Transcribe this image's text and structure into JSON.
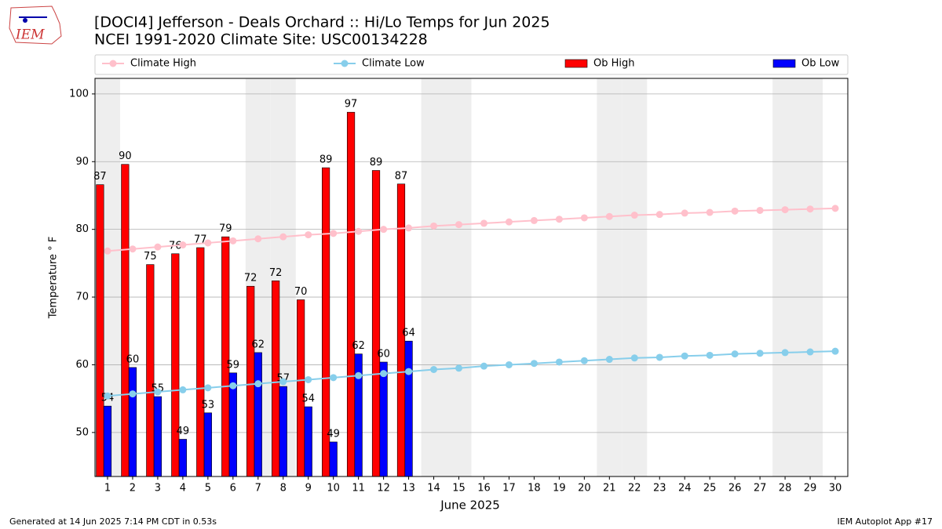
{
  "logo_text": "IEM",
  "chart_data": {
    "type": "bar_line",
    "title": "[DOCI4] Jefferson - Deals Orchard :: Hi/Lo Temps for Jun 2025",
    "subtitle": "NCEI 1991-2020 Climate Site: USC00134228",
    "x_label": "June 2025",
    "y_label": "Temperature ° F",
    "footer_left": "Generated at 14 Jun 2025 7:14 PM CDT in 0.53s",
    "footer_right": "IEM Autoplot App #17",
    "x": [
      1,
      2,
      3,
      4,
      5,
      6,
      7,
      8,
      9,
      10,
      11,
      12,
      13,
      14,
      15,
      16,
      17,
      18,
      19,
      20,
      21,
      22,
      23,
      24,
      25,
      26,
      27,
      28,
      29,
      30
    ],
    "xlim": [
      0.5,
      30.5
    ],
    "xticks": [
      1,
      2,
      3,
      4,
      5,
      6,
      7,
      8,
      9,
      10,
      11,
      12,
      13,
      14,
      15,
      16,
      17,
      18,
      19,
      20,
      21,
      22,
      23,
      24,
      25,
      26,
      27,
      28,
      29,
      30
    ],
    "ylim": [
      43.5,
      102.3
    ],
    "yticks": [
      50,
      60,
      70,
      80,
      90,
      100
    ],
    "grid": true,
    "shaded_days": [
      1,
      7,
      8,
      14,
      15,
      21,
      22,
      28,
      29
    ],
    "shade_color": "#eeeeee",
    "series": [
      {
        "name": "Climate High",
        "kind": "line",
        "color": "#ffc0cb",
        "values": [
          76.8,
          77.1,
          77.4,
          77.7,
          78.0,
          78.3,
          78.6,
          78.9,
          79.2,
          79.4,
          79.7,
          80.0,
          80.2,
          80.5,
          80.7,
          80.9,
          81.1,
          81.3,
          81.5,
          81.7,
          81.9,
          82.1,
          82.2,
          82.4,
          82.5,
          82.7,
          82.8,
          82.9,
          83.0,
          83.1
        ]
      },
      {
        "name": "Climate Low",
        "kind": "line",
        "color": "#87ceeb",
        "values": [
          55.4,
          55.7,
          56.0,
          56.3,
          56.6,
          56.9,
          57.2,
          57.5,
          57.8,
          58.1,
          58.4,
          58.7,
          59.0,
          59.3,
          59.5,
          59.8,
          60.0,
          60.2,
          60.4,
          60.6,
          60.8,
          61.0,
          61.1,
          61.3,
          61.4,
          61.6,
          61.7,
          61.8,
          61.9,
          62.0
        ]
      },
      {
        "name": "Ob High",
        "kind": "bar",
        "color": "#ff0000",
        "values": [
          86.6,
          89.6,
          74.8,
          76.4,
          77.3,
          78.9,
          71.6,
          72.4,
          69.6,
          89.1,
          97.3,
          88.7,
          86.7,
          null,
          null,
          null,
          null,
          null,
          null,
          null,
          null,
          null,
          null,
          null,
          null,
          null,
          null,
          null,
          null,
          null
        ],
        "value_labels": [
          "87",
          "90",
          "75",
          "76",
          "77",
          "79",
          "72",
          "72",
          "70",
          "89",
          "97",
          "89",
          "87",
          null,
          null,
          null,
          null,
          null,
          null,
          null,
          null,
          null,
          null,
          null,
          null,
          null,
          null,
          null,
          null,
          null
        ]
      },
      {
        "name": "Ob Low",
        "kind": "bar",
        "color": "#0000ff",
        "values": [
          53.9,
          59.6,
          55.3,
          49.0,
          52.9,
          58.8,
          61.8,
          56.8,
          53.8,
          48.6,
          61.6,
          60.4,
          63.5,
          null,
          null,
          null,
          null,
          null,
          null,
          null,
          null,
          null,
          null,
          null,
          null,
          null,
          null,
          null,
          null,
          null
        ],
        "value_labels": [
          "54",
          "60",
          "55",
          "49",
          "53",
          "59",
          "62",
          "57",
          "54",
          "49",
          "62",
          "60",
          "64",
          null,
          null,
          null,
          null,
          null,
          null,
          null,
          null,
          null,
          null,
          null,
          null,
          null,
          null,
          null,
          null,
          null
        ]
      }
    ]
  }
}
